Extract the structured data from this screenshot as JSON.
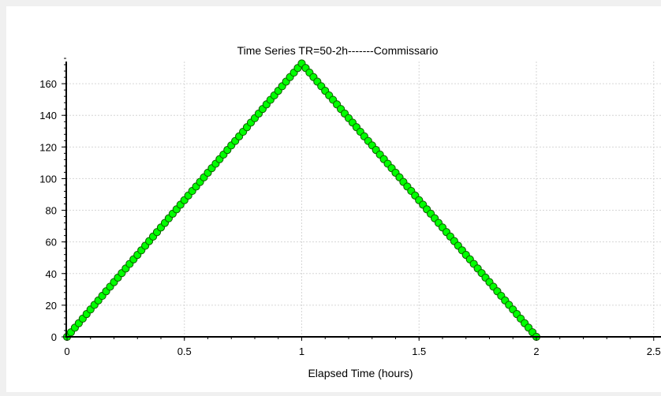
{
  "chart_data": {
    "type": "scatter",
    "title": "Time Series TR=50-2h-------Commissario",
    "xlabel": "Elapsed Time (hours)",
    "ylabel": "",
    "xlim": [
      0,
      2.5
    ],
    "ylim": [
      -3,
      176
    ],
    "x_ticks": [
      0,
      0.5,
      1,
      1.5,
      2,
      2.5
    ],
    "x_tick_labels": [
      "0",
      "0.5",
      "1",
      "1.5",
      "2",
      "2.5"
    ],
    "y_ticks": [
      0,
      20,
      40,
      60,
      80,
      100,
      120,
      140,
      160
    ],
    "y_tick_labels": [
      "0",
      "20",
      "40",
      "60",
      "80",
      "100",
      "120",
      "140",
      "160"
    ],
    "grid": true,
    "legend": "none",
    "series": [
      {
        "x": [
          0,
          0.0167,
          0.0333,
          0.05,
          0.0667,
          0.0833,
          0.1,
          0.1167,
          0.1333,
          0.15,
          0.1667,
          0.1833,
          0.2,
          0.2167,
          0.2333,
          0.25,
          0.2667,
          0.2833,
          0.3,
          0.3167,
          0.3333,
          0.35,
          0.3667,
          0.3833,
          0.4,
          0.4167,
          0.4333,
          0.45,
          0.4667,
          0.4833,
          0.5,
          0.5167,
          0.5333,
          0.55,
          0.5667,
          0.5833,
          0.6,
          0.6167,
          0.6333,
          0.65,
          0.6667,
          0.6833,
          0.7,
          0.7167,
          0.7333,
          0.75,
          0.7667,
          0.7833,
          0.8,
          0.8167,
          0.8333,
          0.85,
          0.8667,
          0.8833,
          0.9,
          0.9167,
          0.9333,
          0.95,
          0.9667,
          0.9833,
          1,
          1.0167,
          1.0333,
          1.05,
          1.0667,
          1.0833,
          1.1,
          1.1167,
          1.1333,
          1.15,
          1.1667,
          1.1833,
          1.2,
          1.2167,
          1.2333,
          1.25,
          1.2667,
          1.2833,
          1.3,
          1.3167,
          1.3333,
          1.35,
          1.3667,
          1.3833,
          1.4,
          1.4167,
          1.4333,
          1.45,
          1.4667,
          1.4833,
          1.5,
          1.5167,
          1.5333,
          1.55,
          1.5667,
          1.5833,
          1.6,
          1.6167,
          1.6333,
          1.65,
          1.6667,
          1.6833,
          1.7,
          1.7167,
          1.7333,
          1.75,
          1.7667,
          1.7833,
          1.8,
          1.8167,
          1.8333,
          1.85,
          1.8667,
          1.8833,
          1.9,
          1.9167,
          1.9333,
          1.95,
          1.9667,
          1.9833,
          2
        ],
        "values": [
          0,
          2.9,
          5.8,
          8.6,
          11.5,
          14.4,
          17.3,
          20.2,
          23,
          25.9,
          28.8,
          31.7,
          34.6,
          37.4,
          40.3,
          43.2,
          46.1,
          49,
          51.8,
          54.7,
          57.6,
          60.5,
          63.4,
          66.2,
          69.1,
          72,
          74.9,
          77.8,
          80.6,
          83.5,
          86.4,
          89.3,
          92.2,
          95,
          97.9,
          100.8,
          103.7,
          106.6,
          109.4,
          112.3,
          115.2,
          118.1,
          121,
          123.8,
          126.7,
          129.6,
          132.5,
          135.4,
          138.2,
          141.1,
          144,
          146.9,
          149.8,
          152.6,
          155.5,
          158.4,
          161.3,
          164.2,
          167,
          169.9,
          172.8,
          169.9,
          167,
          164.2,
          161.3,
          158.4,
          155.5,
          152.6,
          149.8,
          146.9,
          144,
          141.1,
          138.2,
          135.4,
          132.5,
          129.6,
          126.7,
          123.8,
          121,
          118.1,
          115.2,
          112.3,
          109.4,
          106.6,
          103.7,
          100.8,
          97.9,
          95,
          92.2,
          89.3,
          86.4,
          83.5,
          80.6,
          77.8,
          74.9,
          72,
          69.1,
          66.2,
          63.4,
          60.5,
          57.6,
          54.7,
          51.8,
          49,
          46.1,
          43.2,
          40.3,
          37.4,
          34.6,
          31.7,
          28.8,
          25.9,
          23,
          20.2,
          17.3,
          14.4,
          11.5,
          8.6,
          5.8,
          2.9,
          0
        ],
        "color": "#00ff00",
        "line_color": "#00aa00",
        "marker_edge": "#0f5a00"
      }
    ]
  }
}
